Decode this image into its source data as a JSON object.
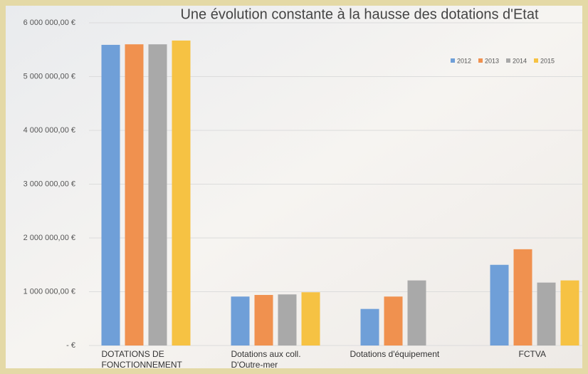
{
  "chart_data": {
    "type": "bar",
    "title": "Une évolution constante à la hausse des dotations d'Etat",
    "categories": [
      "DOTATIONS DE FONCTIONNEMENT",
      "Dotations aux coll. D'Outre-mer",
      "Dotations d'équipement",
      "FCTVA"
    ],
    "series": [
      {
        "name": "2012",
        "color": "#6f9fd8",
        "values": [
          5590000,
          910000,
          680000,
          1500000
        ]
      },
      {
        "name": "2013",
        "color": "#f0914f",
        "values": [
          5600000,
          940000,
          910000,
          1790000
        ]
      },
      {
        "name": "2014",
        "color": "#a9a9a9",
        "values": [
          5600000,
          950000,
          1210000,
          1170000
        ]
      },
      {
        "name": "2015",
        "color": "#f6c243",
        "values": [
          5670000,
          990000,
          null,
          1210000
        ]
      }
    ],
    "ylim": [
      0,
      6000000
    ],
    "yticks": [
      {
        "value": 0,
        "label": "- €"
      },
      {
        "value": 1000000,
        "label": "1 000 000,00 €"
      },
      {
        "value": 2000000,
        "label": "2 000 000,00 €"
      },
      {
        "value": 3000000,
        "label": "3 000 000,00 €"
      },
      {
        "value": 4000000,
        "label": "4 000 000,00 €"
      },
      {
        "value": 5000000,
        "label": "5 000 000,00 €"
      },
      {
        "value": 6000000,
        "label": "6 000 000,00 €"
      }
    ],
    "grid": true,
    "legend": "top-right"
  }
}
